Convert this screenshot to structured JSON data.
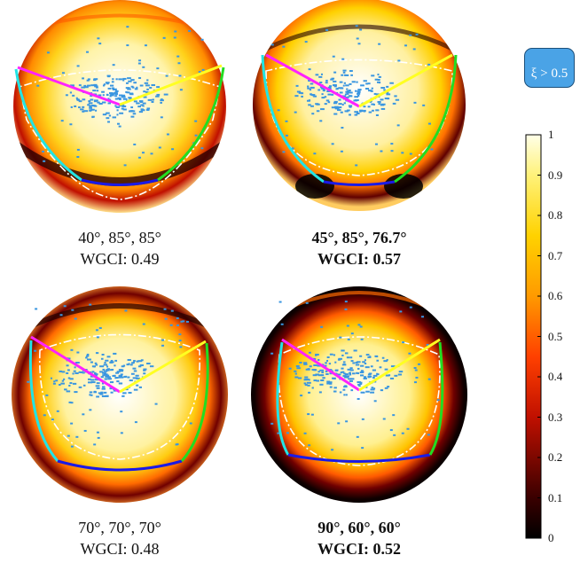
{
  "panels": [
    {
      "angles_label": "40°, 85°, 85°",
      "wgci_label": "WGCI: 0.49",
      "bold": false
    },
    {
      "angles_label": "45°, 85°, 76.7°",
      "wgci_label": "WGCI: 0.57",
      "bold": true
    },
    {
      "angles_label": "70°, 70°, 70°",
      "wgci_label": "WGCI: 0.48",
      "bold": false
    },
    {
      "angles_label": "90°, 60°, 60°",
      "wgci_label": "WGCI: 0.52",
      "bold": true
    }
  ],
  "legend": {
    "label": "ξ > 0.5",
    "line_style": "dash-dot white"
  },
  "colorbar": {
    "colormap": "hot",
    "range": [
      0,
      1
    ],
    "ticks": [
      "1",
      "0.9",
      "0.8",
      "0.7",
      "0.6",
      "0.5",
      "0.4",
      "0.3",
      "0.2",
      "0.1",
      "0"
    ]
  },
  "colors": {
    "points": "#3a96e0",
    "ray_up_left": "#ff22ff",
    "ray_up_right": "#ffff22",
    "edge_left": "#22e4e4",
    "edge_bottom": "#1a1ae6",
    "edge_right": "#22dd22",
    "contour": "#ffffff"
  }
}
